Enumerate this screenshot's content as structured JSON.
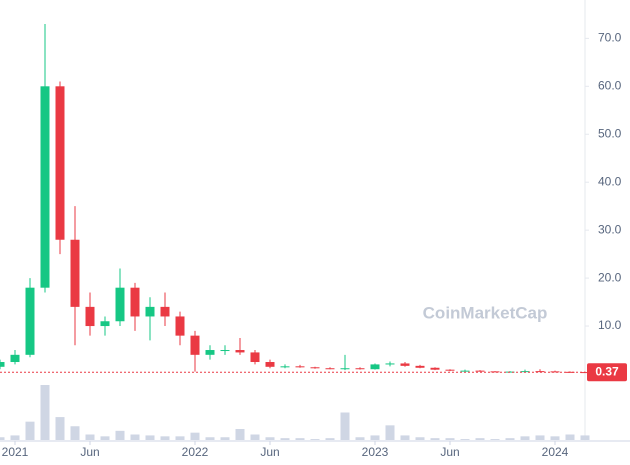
{
  "chart_data": {
    "type": "candlestick",
    "watermark": "CoinMarketCap",
    "x": [
      "2020-12",
      "2021-01",
      "2021-02",
      "2021-03",
      "2021-04",
      "2021-05",
      "2021-06",
      "2021-07",
      "2021-08",
      "2021-09",
      "2021-10",
      "2021-11",
      "2021-12",
      "2022-01",
      "2022-02",
      "2022-03",
      "2022-04",
      "2022-05",
      "2022-06",
      "2022-07",
      "2022-08",
      "2022-09",
      "2022-10",
      "2022-11",
      "2022-12",
      "2023-01",
      "2023-02",
      "2023-03",
      "2023-04",
      "2023-05",
      "2023-06",
      "2023-07",
      "2023-08",
      "2023-09",
      "2023-10",
      "2023-11",
      "2023-12",
      "2024-01",
      "2024-02",
      "2024-03"
    ],
    "open": [
      1.5,
      2.5,
      4,
      18,
      60,
      28,
      14,
      10,
      11,
      18,
      12,
      14,
      12,
      8,
      4,
      5,
      5,
      4.5,
      2.5,
      1.5,
      1.6,
      1.4,
      1.2,
      1.1,
      1.2,
      1.0,
      2.0,
      2.2,
      1.7,
      1.3,
      0.9,
      0.7,
      0.7,
      0.55,
      0.45,
      0.5,
      0.6,
      0.55,
      0.45,
      0.4
    ],
    "high": [
      3,
      5,
      20,
      73,
      61,
      35,
      17,
      12,
      22,
      19,
      16,
      17,
      13,
      9,
      6,
      6,
      7.5,
      5,
      3,
      2,
      1.9,
      1.5,
      1.4,
      4,
      1.4,
      2.2,
      2.6,
      2.5,
      1.9,
      1.4,
      1.0,
      0.9,
      0.8,
      0.6,
      0.6,
      0.9,
      1.0,
      0.7,
      0.55,
      0.5
    ],
    "low": [
      1,
      2,
      3.5,
      17,
      25,
      6,
      8,
      8,
      10,
      9,
      7,
      10,
      6,
      0.5,
      3,
      4,
      4,
      2,
      1.2,
      1.2,
      1.3,
      1.1,
      1.0,
      0.8,
      0.9,
      0.9,
      1.6,
      1.5,
      1.2,
      0.8,
      0.6,
      0.6,
      0.5,
      0.4,
      0.4,
      0.45,
      0.5,
      0.4,
      0.35,
      0.35
    ],
    "close": [
      2.5,
      4,
      18,
      60,
      28,
      14,
      10,
      11,
      18,
      12,
      14,
      12,
      8,
      4,
      5,
      5,
      4.5,
      2.5,
      1.5,
      1.6,
      1.4,
      1.2,
      1.1,
      1.2,
      1.0,
      2.0,
      2.2,
      1.7,
      1.3,
      0.9,
      0.7,
      0.7,
      0.55,
      0.45,
      0.5,
      0.6,
      0.55,
      0.45,
      0.4,
      0.37
    ],
    "volume": [
      3,
      5,
      20,
      60,
      25,
      15,
      6,
      4,
      10,
      6,
      5,
      4,
      4,
      8,
      3,
      3,
      12,
      6,
      3,
      2,
      2,
      1,
      2,
      30,
      3,
      5,
      16,
      5,
      3,
      2,
      2,
      1,
      2,
      1,
      2,
      4,
      5,
      4,
      6,
      5
    ],
    "up_color": "#16c784",
    "down_color": "#ea3943",
    "volume_color": "#cfd6e4",
    "last_price": 0.37,
    "xlim": [
      "2020-12",
      "2024-03"
    ],
    "xticks": [
      {
        "value": "2021-01",
        "label": "2021"
      },
      {
        "value": "2021-06",
        "label": "Jun"
      },
      {
        "value": "2022-01",
        "label": "2022"
      },
      {
        "value": "2022-06",
        "label": "Jun"
      },
      {
        "value": "2023-01",
        "label": "2023"
      },
      {
        "value": "2023-06",
        "label": "Jun"
      },
      {
        "value": "2024-01",
        "label": "2024"
      }
    ],
    "ylim": [
      0,
      78
    ],
    "yticks": [
      {
        "value": 10,
        "label": "10.0"
      },
      {
        "value": 20,
        "label": "20.0"
      },
      {
        "value": 30,
        "label": "30.0"
      },
      {
        "value": 40,
        "label": "40.0"
      },
      {
        "value": 50,
        "label": "50.0"
      },
      {
        "value": 60,
        "label": "60.0"
      },
      {
        "value": 70,
        "label": "70.0"
      }
    ]
  }
}
